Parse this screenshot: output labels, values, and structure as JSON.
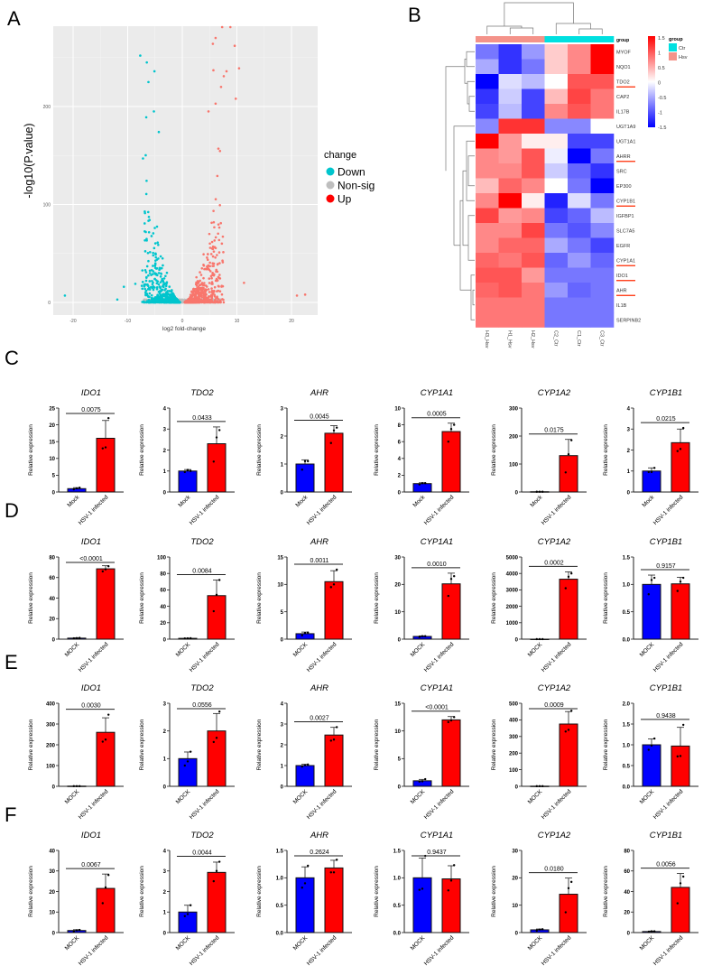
{
  "panel_labels": [
    "A",
    "B",
    "C",
    "D",
    "E",
    "F"
  ],
  "colors": {
    "down": "#00c5cd",
    "nonsig": "#bebebe",
    "up": "#f8766d",
    "mock": "#0000ff",
    "infected": "#ff0000",
    "ctr": "#00e0e0",
    "hsv": "#f4938a",
    "hm_low": "#0000ff",
    "hm_high": "#ff0000"
  },
  "chart_data": [
    {
      "id": "A",
      "type": "scatter",
      "title": "",
      "xlabel": "log2 fold-change",
      "ylabel": "-log10(P.value)",
      "xlim": [
        -24,
        24
      ],
      "ylim": [
        -10,
        275
      ],
      "xticks": [
        -20,
        -10,
        0,
        10,
        20
      ],
      "yticks": [
        0,
        100,
        200
      ],
      "grid": true,
      "legend": {
        "title": "change",
        "position": "right",
        "entries": [
          "Down",
          "Non-sig",
          "Up"
        ]
      },
      "representative_points": {
        "Down": [
          [
            -7.7,
            252
          ],
          [
            -6.5,
            245
          ],
          [
            -5.1,
            236
          ],
          [
            -6.2,
            225
          ],
          [
            -5.2,
            195
          ],
          [
            -6.6,
            189
          ],
          [
            -4.3,
            174
          ],
          [
            -7.2,
            147
          ],
          [
            -10.7,
            16
          ],
          [
            -11.9,
            3
          ],
          [
            -21.5,
            7
          ],
          [
            -8.6,
            19
          ]
        ],
        "Up": [
          [
            7.3,
            282
          ],
          [
            8.8,
            282
          ],
          [
            6.1,
            270
          ],
          [
            5.6,
            264
          ],
          [
            9.6,
            262
          ],
          [
            10.4,
            239
          ],
          [
            5.7,
            237
          ],
          [
            8.1,
            236
          ],
          [
            7.6,
            231
          ],
          [
            7.1,
            220
          ],
          [
            9.8,
            208
          ],
          [
            6.1,
            203
          ],
          [
            4.8,
            195
          ],
          [
            21,
            7
          ],
          [
            22.5,
            8
          ],
          [
            11.3,
            20
          ]
        ],
        "Non-sig_range_lfc": [
          -8,
          8
        ]
      }
    },
    {
      "id": "B",
      "type": "heatmap",
      "columns": [
        "H3_Hsv",
        "H1_Hsv",
        "H2_Hsv",
        "C2_Ctr",
        "C1_Ctr",
        "C3_Ctr"
      ],
      "column_groups": [
        "Hsv",
        "Hsv",
        "Hsv",
        "Ctr",
        "Ctr",
        "Ctr"
      ],
      "group_label": "group",
      "legend_title": "group",
      "legend_entries": [
        "Ctr",
        "Hsv"
      ],
      "colorbar_ticks": [
        "1.5",
        "1",
        "0.5",
        "0",
        "-0.5",
        "-1",
        "-1.5"
      ],
      "zlim": [
        -1.5,
        1.5
      ],
      "rows": [
        "MYOF",
        "NQO1",
        "TDO2",
        "CAP2",
        "IL17B",
        "UGT1A9",
        "UGT1A1",
        "AHRR",
        "SRC",
        "EP300",
        "CYP1B1",
        "IGFBP1",
        "SLC7A5",
        "EGFR",
        "CYP1A1",
        "IDO1",
        "AHR",
        "IL1B",
        "SERPINB2"
      ],
      "highlighted_rows": [
        "TDO2",
        "AHRR",
        "CYP1B1",
        "CYP1A1",
        "IDO1",
        "AHR"
      ],
      "values": [
        [
          -0.8,
          -1.2,
          -0.6,
          0.3,
          0.7,
          1.5
        ],
        [
          -0.5,
          -1.2,
          -0.8,
          0.3,
          0.7,
          1.5
        ],
        [
          -1.5,
          -0.2,
          -0.4,
          0.0,
          1.0,
          1.0
        ],
        [
          -1.2,
          -0.3,
          -1.1,
          0.4,
          1.1,
          0.8
        ],
        [
          -1.1,
          -0.4,
          -1.1,
          0.7,
          1.0,
          0.8
        ],
        [
          -0.7,
          1.2,
          1.2,
          -0.7,
          -0.7,
          0.0
        ],
        [
          1.5,
          0.6,
          0.1,
          0.1,
          -1.1,
          -1.1
        ],
        [
          0.7,
          0.6,
          1.0,
          -0.1,
          -1.5,
          -0.8
        ],
        [
          0.7,
          0.7,
          1.0,
          -0.3,
          -0.9,
          -1.2
        ],
        [
          0.4,
          0.9,
          0.7,
          0.0,
          -0.8,
          -1.5
        ],
        [
          0.7,
          1.5,
          0.1,
          -1.3,
          -0.2,
          -0.8
        ],
        [
          1.1,
          0.6,
          0.7,
          -1.1,
          -0.9,
          -0.4
        ],
        [
          0.7,
          0.7,
          1.1,
          -0.8,
          -1.0,
          -0.7
        ],
        [
          0.7,
          0.9,
          0.9,
          -0.5,
          -0.8,
          -1.1
        ],
        [
          0.9,
          0.8,
          1.0,
          -0.9,
          -0.6,
          -0.9
        ],
        [
          1.0,
          1.0,
          0.6,
          -0.8,
          -0.8,
          -0.8
        ],
        [
          0.9,
          1.0,
          0.8,
          -0.6,
          -0.9,
          -0.8
        ],
        [
          0.8,
          0.8,
          0.8,
          -0.8,
          -0.8,
          -0.8
        ],
        [
          0.8,
          0.8,
          0.8,
          -0.8,
          -0.8,
          -0.8
        ]
      ]
    },
    {
      "id": "C",
      "type": "bar",
      "ylabel": "Relative expression",
      "categories": [
        "Mock",
        "HSV-1 infected"
      ],
      "charts": [
        {
          "title": "IDO1",
          "ylim": [
            0,
            25
          ],
          "step": 5,
          "means": [
            1.0,
            16.0
          ],
          "sd": [
            0.3,
            5.3
          ],
          "points": [
            [
              0.8,
              1.1,
              1.3
            ],
            [
              13,
              13.3,
              22
            ]
          ],
          "p": "0.0075"
        },
        {
          "title": "TDO2",
          "ylim": [
            0,
            4
          ],
          "step": 1,
          "means": [
            1.0,
            2.3
          ],
          "sd": [
            0.07,
            0.8
          ],
          "points": [
            [
              0.95,
              1.05,
              1.0
            ],
            [
              1.45,
              2.6,
              2.95
            ]
          ],
          "p": "0.0433"
        },
        {
          "title": "AHR",
          "ylim": [
            0,
            3
          ],
          "step": 1,
          "means": [
            1.0,
            2.1
          ],
          "sd": [
            0.15,
            0.27
          ],
          "points": [
            [
              0.8,
              1.1,
              1.1
            ],
            [
              1.75,
              2.2,
              2.3
            ]
          ],
          "p": "0.0045"
        },
        {
          "title": "CYP1A1",
          "ylim": [
            0,
            10
          ],
          "step": 2,
          "means": [
            1.0,
            7.2
          ],
          "sd": [
            0.1,
            1.0
          ],
          "points": [
            [
              0.9,
              1.05,
              1.05
            ],
            [
              6.0,
              7.5,
              8.0
            ]
          ],
          "p": "0.0005"
        },
        {
          "title": "CYP1A2",
          "ylim": [
            0,
            300
          ],
          "step": 100,
          "means": [
            1,
            130
          ],
          "sd": [
            0,
            58
          ],
          "points": [
            [
              1,
              1,
              1
            ],
            [
              70,
              135,
              185
            ]
          ],
          "p": "0.0175"
        },
        {
          "title": "CYP1B1",
          "ylim": [
            0,
            4
          ],
          "step": 1,
          "means": [
            1.0,
            2.35
          ],
          "sd": [
            0.15,
            0.65
          ],
          "points": [
            [
              0.95,
              0.95,
              1.15
            ],
            [
              1.95,
              2.05,
              3.05
            ]
          ],
          "p": "0.0215"
        }
      ]
    },
    {
      "id": "D",
      "type": "bar",
      "ylabel": "Relative expression",
      "categories": [
        "MOCK",
        "HSV-1 infected"
      ],
      "charts": [
        {
          "title": "IDO1",
          "ylim": [
            0,
            80
          ],
          "step": 20,
          "means": [
            1,
            68.5
          ],
          "sd": [
            0.3,
            3
          ],
          "points": [
            [
              0.8,
              1,
              1.2
            ],
            [
              66,
              68,
              71
            ]
          ],
          "p": "<0.0001"
        },
        {
          "title": "TDO2",
          "ylim": [
            0,
            100
          ],
          "step": 20,
          "means": [
            1,
            53
          ],
          "sd": [
            0.2,
            19
          ],
          "points": [
            [
              0.9,
              1,
              1.1
            ],
            [
              34,
              54,
              72
            ]
          ],
          "p": "0.0084"
        },
        {
          "title": "AHR",
          "ylim": [
            0,
            15
          ],
          "step": 5,
          "means": [
            1,
            10.5
          ],
          "sd": [
            0.3,
            2
          ],
          "points": [
            [
              0.7,
              1.1,
              1.2
            ],
            [
              9.5,
              10,
              12.7
            ]
          ],
          "p": "0.0011"
        },
        {
          "title": "CYP1A1",
          "ylim": [
            0,
            30
          ],
          "step": 10,
          "means": [
            1,
            20.2
          ],
          "sd": [
            0.2,
            3.9
          ],
          "points": [
            [
              0.8,
              1.1,
              1.1
            ],
            [
              15.8,
              22,
              23
            ]
          ],
          "p": "0.0010"
        },
        {
          "title": "CYP1A2",
          "ylim": [
            0,
            5000
          ],
          "step": 1000,
          "means": [
            1,
            3650
          ],
          "sd": [
            0,
            450
          ],
          "points": [
            [
              1,
              1,
              1
            ],
            [
              3100,
              3800,
              4000
            ]
          ],
          "p": "0.0002"
        },
        {
          "title": "CYP1B1",
          "ylim": [
            0,
            1.5
          ],
          "step": 0.5,
          "means": [
            1.0,
            1.01
          ],
          "sd": [
            0.17,
            0.12
          ],
          "points": [
            [
              0.82,
              1.08,
              1.12
            ],
            [
              0.88,
              1.05,
              1.12
            ]
          ],
          "p": "0.9157"
        }
      ]
    },
    {
      "id": "E",
      "type": "bar",
      "ylabel": "Relative expression",
      "categories": [
        "MOCK",
        "HSV-1 infected"
      ],
      "charts": [
        {
          "title": "IDO1",
          "ylim": [
            0,
            400
          ],
          "step": 100,
          "means": [
            1,
            260
          ],
          "sd": [
            0,
            70
          ],
          "points": [
            [
              1,
              1,
              1
            ],
            [
              215,
              225,
              345
            ]
          ],
          "p": "0.0030"
        },
        {
          "title": "TDO2",
          "ylim": [
            0,
            3
          ],
          "step": 1,
          "means": [
            1,
            2.0
          ],
          "sd": [
            0.24,
            0.63
          ],
          "points": [
            [
              0.75,
              0.9,
              1.25
            ],
            [
              1.6,
              1.75,
              2.7
            ]
          ],
          "p": "0.0556"
        },
        {
          "title": "AHR",
          "ylim": [
            0,
            4
          ],
          "step": 1,
          "means": [
            1,
            2.47
          ],
          "sd": [
            0.06,
            0.37
          ],
          "points": [
            [
              0.95,
              1.02,
              1.05
            ],
            [
              2.2,
              2.25,
              2.85
            ]
          ],
          "p": "0.0027"
        },
        {
          "title": "CYP1A1",
          "ylim": [
            0,
            15
          ],
          "step": 5,
          "means": [
            1,
            12
          ],
          "sd": [
            0.25,
            0.6
          ],
          "points": [
            [
              0.85,
              0.9,
              1.3
            ],
            [
              11.6,
              11.9,
              12.5
            ]
          ],
          "p": "<0.0001"
        },
        {
          "title": "CYP1A2",
          "ylim": [
            0,
            500
          ],
          "step": 100,
          "means": [
            1,
            375
          ],
          "sd": [
            0,
            75
          ],
          "points": [
            [
              1,
              1,
              1
            ],
            [
              330,
              340,
              455
            ]
          ],
          "p": "0.0009"
        },
        {
          "title": "CYP1B1",
          "ylim": [
            0,
            2.0
          ],
          "step": 0.5,
          "means": [
            1,
            0.97
          ],
          "sd": [
            0.14,
            0.45
          ],
          "points": [
            [
              0.88,
              0.98,
              1.15
            ],
            [
              0.72,
              0.73,
              1.48
            ]
          ],
          "p": "0.9438"
        }
      ]
    },
    {
      "id": "F",
      "type": "bar",
      "ylabel": "Relative expression",
      "categories": [
        "MOCK",
        "HSV-1 infected"
      ],
      "charts": [
        {
          "title": "IDO1",
          "ylim": [
            0,
            40
          ],
          "step": 10,
          "means": [
            1,
            21.5
          ],
          "sd": [
            0.4,
            7
          ],
          "points": [
            [
              0.6,
              1.1,
              1.3
            ],
            [
              14.3,
              22,
              28
            ]
          ],
          "p": "0.0067"
        },
        {
          "title": "TDO2",
          "ylim": [
            0,
            4
          ],
          "step": 1,
          "means": [
            1,
            2.93
          ],
          "sd": [
            0.33,
            0.5
          ],
          "points": [
            [
              0.8,
              0.9,
              1.33
            ],
            [
              2.5,
              3.0,
              3.45
            ]
          ],
          "p": "0.0044"
        },
        {
          "title": "AHR",
          "ylim": [
            0,
            1.5
          ],
          "step": 0.5,
          "means": [
            1,
            1.18
          ],
          "sd": [
            0.2,
            0.14
          ],
          "points": [
            [
              0.82,
              0.9,
              1.22
            ],
            [
              1.1,
              1.1,
              1.33
            ]
          ],
          "p": "0.2624"
        },
        {
          "title": "CYP1A1",
          "ylim": [
            0,
            1.5
          ],
          "step": 0.5,
          "means": [
            1,
            0.98
          ],
          "sd": [
            0.36,
            0.24
          ],
          "points": [
            [
              0.78,
              0.8,
              1.4
            ],
            [
              0.77,
              0.95,
              1.23
            ]
          ],
          "p": "0.9437"
        },
        {
          "title": "CYP1A2",
          "ylim": [
            0,
            30
          ],
          "step": 10,
          "means": [
            1,
            14
          ],
          "sd": [
            0.3,
            5.9
          ],
          "points": [
            [
              0.7,
              1.1,
              1.2
            ],
            [
              7.4,
              16.2,
              18.5
            ]
          ],
          "p": "0.0180"
        },
        {
          "title": "CYP1B1",
          "ylim": [
            0,
            80
          ],
          "step": 20,
          "means": [
            1,
            44
          ],
          "sd": [
            0.5,
            13.5
          ],
          "points": [
            [
              0.6,
              1.2,
              1.3
            ],
            [
              28.5,
              48,
              54.5
            ]
          ],
          "p": "0.0056"
        }
      ]
    }
  ]
}
